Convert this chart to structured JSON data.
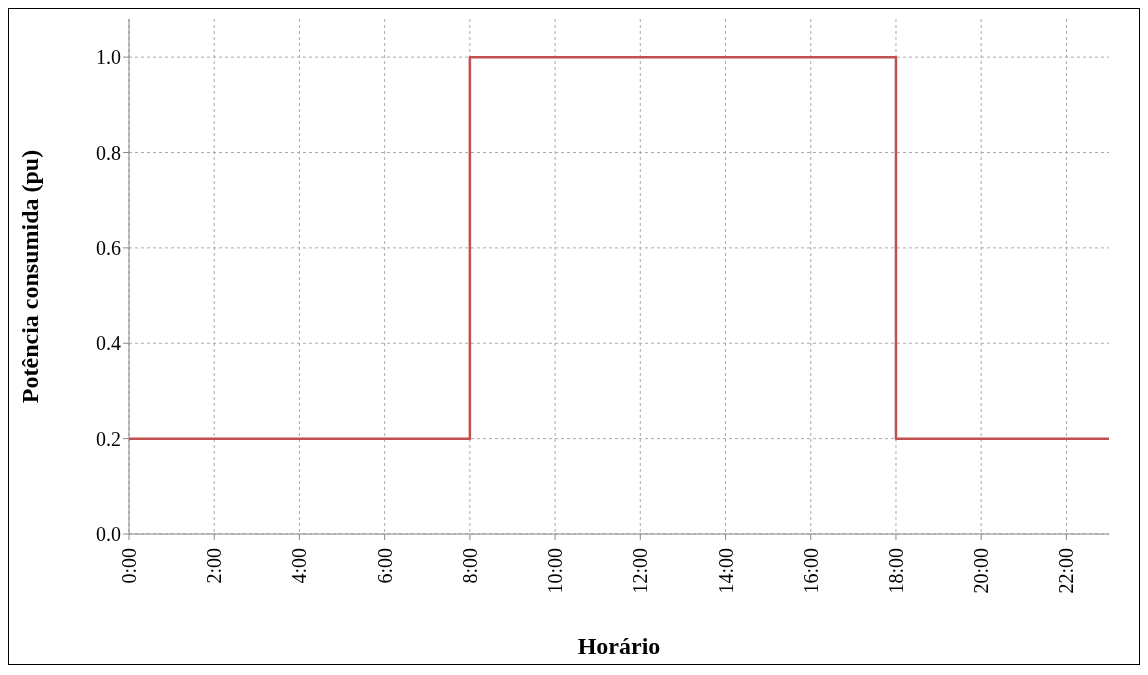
{
  "chart_data": {
    "type": "step",
    "xlabel": "Horário",
    "ylabel": "Potência consumida (pu)",
    "x": [
      0,
      8,
      18,
      23
    ],
    "series": [
      {
        "color": "#c0504d",
        "values": [
          0.2,
          1.0,
          0.2,
          0.2
        ]
      }
    ],
    "xlim": [
      0,
      23
    ],
    "xticks": [
      {
        "value": 0,
        "label": "0:00"
      },
      {
        "value": 2,
        "label": "2:00"
      },
      {
        "value": 4,
        "label": "4:00"
      },
      {
        "value": 6,
        "label": "6:00"
      },
      {
        "value": 8,
        "label": "8:00"
      },
      {
        "value": 10,
        "label": "10:00"
      },
      {
        "value": 12,
        "label": "12:00"
      },
      {
        "value": 14,
        "label": "14:00"
      },
      {
        "value": 16,
        "label": "16:00"
      },
      {
        "value": 18,
        "label": "18:00"
      },
      {
        "value": 20,
        "label": "20:00"
      },
      {
        "value": 22,
        "label": "22:00"
      }
    ],
    "ylim": [
      0,
      1.08
    ],
    "yticks": [
      {
        "value": 0,
        "label": "0.0"
      },
      {
        "value": 0.2,
        "label": "0.2"
      },
      {
        "value": 0.4,
        "label": "0.4"
      },
      {
        "value": 0.6,
        "label": "0.6"
      },
      {
        "value": 0.8,
        "label": "0.8"
      },
      {
        "value": 1.0,
        "label": "1.0"
      }
    ],
    "grid": true,
    "legend": false,
    "marker": "none",
    "line_style": "solid"
  }
}
